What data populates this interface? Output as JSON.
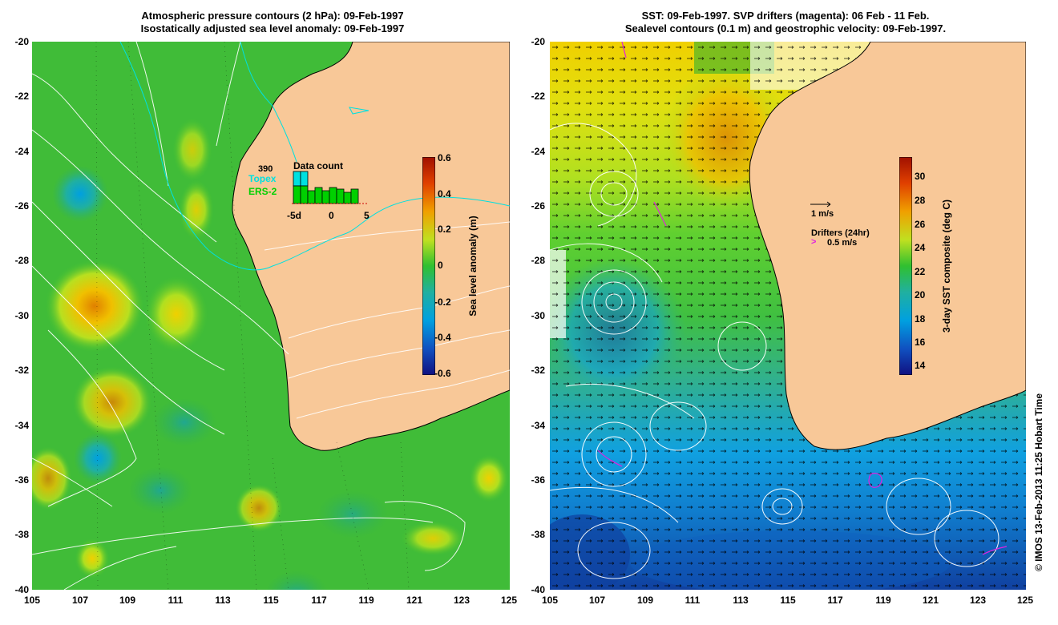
{
  "left_panel": {
    "title_line1": "Atmospheric pressure contours (2 hPa): 09-Feb-1997",
    "title_line2": "Isostatically adjusted sea level anomaly: 09-Feb-1997",
    "y_ticks": [
      "-20",
      "-22",
      "-24",
      "-26",
      "-28",
      "-30",
      "-32",
      "-34",
      "-36",
      "-38",
      "-40"
    ],
    "x_ticks": [
      "105",
      "107",
      "109",
      "111",
      "113",
      "115",
      "117",
      "119",
      "121",
      "123",
      "125"
    ],
    "colorbar_label": "Sea level anomaly (m)",
    "colorbar_ticks": [
      "0.6",
      "0.4",
      "0.2",
      "0",
      "-0.2",
      "-0.4",
      "-0.6"
    ],
    "inset": {
      "title": "Data count",
      "count": "390",
      "topex_label": "Topex",
      "ers_label": "ERS-2",
      "x_ticks": [
        "-5d",
        "0",
        "5"
      ]
    }
  },
  "right_panel": {
    "title_line1": "SST: 09-Feb-1997. SVP drifters (magenta): 06 Feb - 11 Feb.",
    "title_line2": "Sealevel contours (0.1 m) and geostrophic velocity: 09-Feb-1997.",
    "y_ticks": [
      "-20",
      "-22",
      "-24",
      "-26",
      "-28",
      "-30",
      "-32",
      "-34",
      "-36",
      "-38",
      "-40"
    ],
    "x_ticks": [
      "105",
      "107",
      "109",
      "111",
      "113",
      "115",
      "117",
      "119",
      "121",
      "123",
      "125"
    ],
    "colorbar_label": "3-day SST composite (deg C)",
    "colorbar_ticks": [
      "30",
      "28",
      "26",
      "24",
      "22",
      "20",
      "18",
      "16",
      "14"
    ],
    "velocity_scale": "1 m/s",
    "drifters_label": "Drifters (24hr)",
    "drifters_scale": "0.5 m/s"
  },
  "credit": "© IMOS 13-Feb-2013 11:25 Hobart Time",
  "colors": {
    "land": "#f8c898",
    "ocean_green": "#30c030",
    "topex": "#00e0e0",
    "ers": "#00d000",
    "drifter": "#e020e0"
  }
}
